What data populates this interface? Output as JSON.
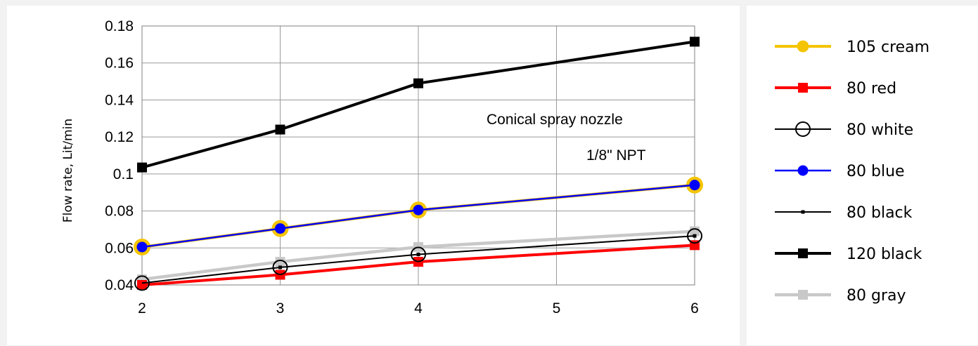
{
  "chart_data": {
    "type": "line",
    "x": [
      2,
      3,
      4,
      6
    ],
    "xlim": [
      2,
      6
    ],
    "xticks": [
      2,
      3,
      4,
      5,
      6
    ],
    "ylim": [
      0.04,
      0.18
    ],
    "yticks": [
      "0.04",
      "0.06",
      "0.08",
      "0.1",
      "0.12",
      "0.14",
      "0.16",
      "0.18"
    ],
    "ylabel": "Flow  rate, Lit/min",
    "xlabel": "",
    "grid": true,
    "legend_position": "right",
    "annotations": [
      "Conical  spray nozzle",
      "1/8\" NPT"
    ],
    "series": [
      {
        "name": "105 cream",
        "values": [
          0.0605,
          0.0705,
          0.0805,
          0.094
        ],
        "color": "#f5c400",
        "marker": "circle-large"
      },
      {
        "name": "80 red",
        "values": [
          0.04,
          0.0455,
          0.0525,
          0.0615
        ],
        "color": "#ff0000",
        "marker": "square"
      },
      {
        "name": "80 white",
        "values": [
          0.041,
          0.0495,
          0.0565,
          0.0665
        ],
        "color": "#000000",
        "marker": "circle-open"
      },
      {
        "name": "80 blue",
        "values": [
          0.0605,
          0.0705,
          0.0805,
          0.094
        ],
        "color": "#0000ff",
        "marker": "circle"
      },
      {
        "name": "80 black",
        "values": [
          0.041,
          0.0495,
          0.0565,
          0.0665
        ],
        "color": "#000000",
        "marker": "dot"
      },
      {
        "name": "120 black",
        "values": [
          0.1035,
          0.124,
          0.149,
          0.1715
        ],
        "color": "#000000",
        "marker": "square"
      },
      {
        "name": "80 gray",
        "values": [
          0.043,
          0.0525,
          0.0605,
          0.069
        ],
        "color": "#c8c8c8",
        "marker": "square"
      }
    ]
  }
}
